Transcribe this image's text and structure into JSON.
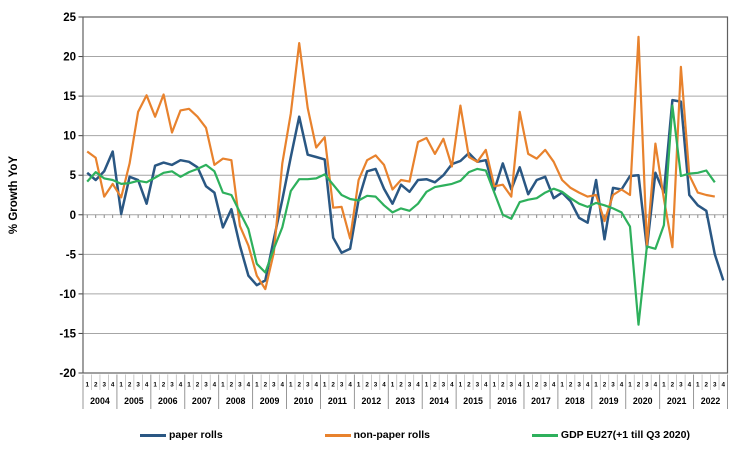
{
  "chart_data": {
    "type": "line",
    "title": "",
    "ylabel": "% Growth YoY",
    "xlabel": "",
    "ylim": [
      -20,
      25
    ],
    "ytick_step": 5,
    "ytick_labels": [
      "25",
      "20",
      "15",
      "10",
      "5",
      "0",
      "-5",
      "-10",
      "-15",
      "-20"
    ],
    "grid": "horizontal",
    "legend_position": "bottom",
    "quarter_labels": [
      "1",
      "2",
      "3",
      "4"
    ],
    "years": [
      "2004",
      "2005",
      "2006",
      "2007",
      "2008",
      "2009",
      "2010",
      "2011",
      "2012",
      "2013",
      "2014",
      "2015",
      "2016",
      "2017",
      "2018",
      "2019",
      "2020",
      "2021",
      "2022"
    ],
    "colors": {
      "paper_rolls": "#2A5783",
      "non_paper_rolls": "#E8822D",
      "gdp": "#2EB05C",
      "gridline": "#A6A6A6",
      "plot_border": "#606060",
      "axis_text": "#000000"
    },
    "series": [
      {
        "name": "paper rolls",
        "color": "#2A5783",
        "values": [
          5.3,
          4.4,
          5.5,
          8.0,
          0.1,
          4.8,
          4.4,
          1.4,
          6.2,
          6.6,
          6.3,
          6.9,
          6.7,
          6.0,
          3.6,
          2.8,
          -1.6,
          0.7,
          -3.9,
          -7.7,
          -8.9,
          -8.3,
          -3.1,
          1.9,
          7.3,
          12.4,
          7.6,
          7.3,
          7.0,
          -2.9,
          -4.8,
          -4.3,
          1.9,
          5.5,
          5.8,
          3.3,
          1.4,
          3.8,
          2.9,
          4.4,
          4.5,
          4.1,
          5.0,
          6.4,
          6.8,
          7.8,
          6.7,
          6.9,
          3.1,
          6.5,
          3.2,
          6.0,
          2.6,
          4.4,
          4.8,
          2.1,
          2.8,
          1.7,
          -0.4,
          -1.0,
          4.4,
          -3.1,
          3.4,
          3.2,
          4.9,
          5.0,
          -4.2,
          5.3,
          2.8,
          14.5,
          14.3,
          2.5,
          1.2,
          0.5,
          -5.0,
          -8.3
        ]
      },
      {
        "name": "non-paper rolls",
        "color": "#E8822D",
        "values": [
          8.0,
          7.2,
          2.3,
          3.9,
          2.2,
          6.5,
          13.0,
          15.1,
          12.4,
          15.2,
          10.4,
          13.2,
          13.4,
          12.4,
          11.0,
          6.3,
          7.1,
          6.9,
          -1.4,
          -3.9,
          -7.7,
          -9.4,
          -4.8,
          6.5,
          12.8,
          21.7,
          13.5,
          8.5,
          9.8,
          0.9,
          1.0,
          -3.0,
          4.4,
          6.9,
          7.5,
          6.3,
          3.2,
          4.4,
          4.2,
          9.2,
          9.7,
          7.7,
          9.6,
          6.1,
          13.8,
          7.3,
          6.7,
          8.2,
          3.6,
          3.8,
          2.3,
          13.0,
          7.7,
          7.1,
          8.2,
          6.7,
          4.4,
          3.4,
          2.8,
          2.3,
          2.5,
          -0.8,
          2.5,
          3.2,
          2.5,
          22.5,
          -3.9,
          9.0,
          2.0,
          -4.1,
          18.7,
          5.0,
          2.8,
          2.5,
          2.3,
          null
        ]
      },
      {
        "name": "GDP EU27(+1 till Q3 2020)",
        "color": "#2EB05C",
        "values": [
          4.2,
          5.4,
          4.6,
          4.4,
          3.9,
          4.0,
          4.3,
          4.1,
          4.7,
          5.3,
          5.5,
          4.8,
          5.4,
          5.8,
          6.3,
          5.5,
          2.8,
          2.5,
          0.3,
          -1.8,
          -6.2,
          -7.3,
          -4.3,
          -1.6,
          3.0,
          4.5,
          4.5,
          4.6,
          5.1,
          3.8,
          2.5,
          2.0,
          1.8,
          2.4,
          2.3,
          1.2,
          0.3,
          0.8,
          0.5,
          1.4,
          2.9,
          3.5,
          3.7,
          3.9,
          4.3,
          5.4,
          5.8,
          5.6,
          2.8,
          0.0,
          -0.5,
          1.6,
          1.9,
          2.1,
          2.8,
          3.3,
          2.9,
          2.1,
          1.4,
          1.0,
          1.5,
          1.2,
          0.8,
          0.3,
          -1.5,
          -13.9,
          -4.0,
          -4.3,
          -1.3,
          13.8,
          4.9,
          5.2,
          5.3,
          5.6,
          4.1,
          null
        ]
      }
    ]
  }
}
